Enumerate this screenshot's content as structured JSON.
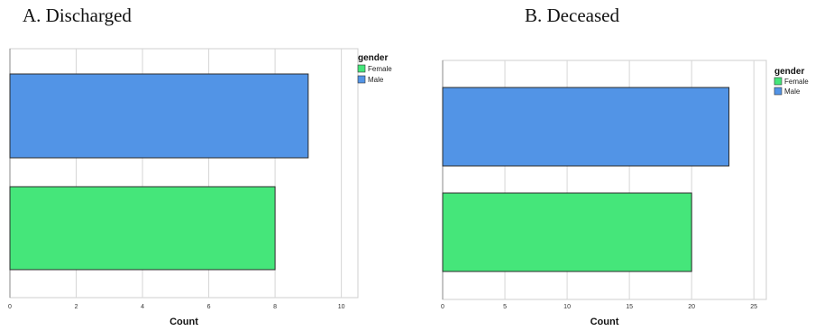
{
  "panels": [
    {
      "panel_title": "A.  Discharged",
      "legend_title": "gender",
      "legend": [
        {
          "label": "Female",
          "color": "#45e67a"
        },
        {
          "label": "Male",
          "color": "#5294e6"
        }
      ]
    },
    {
      "panel_title": "B. Deceased",
      "legend_title": "gender",
      "legend": [
        {
          "label": "Female",
          "color": "#45e67a"
        },
        {
          "label": "Male",
          "color": "#5294e6"
        }
      ]
    }
  ],
  "chart_data": [
    {
      "type": "bar",
      "orientation": "horizontal",
      "title": "A.  Discharged",
      "xlabel": "Count",
      "ylabel": "",
      "categories": [
        "Male",
        "Female"
      ],
      "values": [
        9,
        8
      ],
      "colors": [
        "#5294e6",
        "#45e67a"
      ],
      "xlim": [
        0,
        10.5
      ],
      "xticks": [
        0,
        2,
        4,
        6,
        8,
        10
      ],
      "grid": "vertical",
      "legend_title": "gender",
      "legend_position": "top-right"
    },
    {
      "type": "bar",
      "orientation": "horizontal",
      "title": "B. Deceased",
      "xlabel": "Count",
      "ylabel": "",
      "categories": [
        "Male",
        "Female"
      ],
      "values": [
        23,
        20
      ],
      "colors": [
        "#5294e6",
        "#45e67a"
      ],
      "xlim": [
        0,
        26
      ],
      "xticks": [
        0,
        5,
        10,
        15,
        20,
        25
      ],
      "grid": "vertical",
      "legend_title": "gender",
      "legend_position": "top-right"
    }
  ]
}
